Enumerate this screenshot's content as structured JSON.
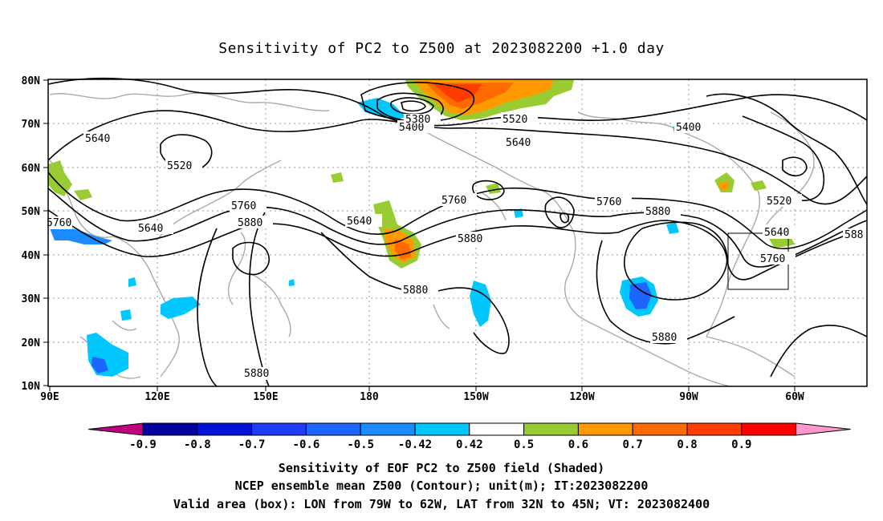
{
  "title": "Sensitivity of PC2 to Z500 at 2023082200 +1.0 day",
  "axes": {
    "lat_ticks": [
      "10N",
      "20N",
      "30N",
      "40N",
      "50N",
      "60N",
      "70N",
      "80N"
    ],
    "lon_ticks": [
      "90E",
      "120E",
      "150E",
      "180",
      "150W",
      "120W",
      "90W",
      "60W"
    ]
  },
  "contour_labels": [
    {
      "text": "5640"
    },
    {
      "text": "5520"
    },
    {
      "text": "5400"
    },
    {
      "text": "5380"
    },
    {
      "text": "5520"
    },
    {
      "text": "5640"
    },
    {
      "text": "5400"
    },
    {
      "text": "5760"
    },
    {
      "text": "5640"
    },
    {
      "text": "5760"
    },
    {
      "text": "5880"
    },
    {
      "text": "5640"
    },
    {
      "text": "5760"
    },
    {
      "text": "5880"
    },
    {
      "text": "5880"
    },
    {
      "text": "5760"
    },
    {
      "text": "5880"
    },
    {
      "text": "5520"
    },
    {
      "text": "5640"
    },
    {
      "text": "5760"
    },
    {
      "text": "588"
    },
    {
      "text": "5880"
    },
    {
      "text": "5880"
    }
  ],
  "colorbar": {
    "labels": [
      "-0.9",
      "-0.8",
      "-0.7",
      "-0.6",
      "-0.5",
      "-0.42",
      "0.42",
      "0.5",
      "0.6",
      "0.7",
      "0.8",
      "0.9"
    ],
    "colors": [
      "#c0007f",
      "#0000a0",
      "#0012d8",
      "#1f3cf5",
      "#1e64ff",
      "#1a8cff",
      "#00c8ff",
      "#ffffff",
      "#99cc33",
      "#ff9900",
      "#ff6a00",
      "#ff3c00",
      "#ff0000",
      "#ff99cc"
    ]
  },
  "captions": {
    "line1": "Sensitivity of EOF PC2 to Z500 field (Shaded)",
    "line2": "NCEP ensemble mean Z500 (Contour); unit(m); IT:2023082200",
    "line3": "Valid area (box): LON from 79W to 62W, LAT from 32N to 45N; VT: 2023082400"
  }
}
